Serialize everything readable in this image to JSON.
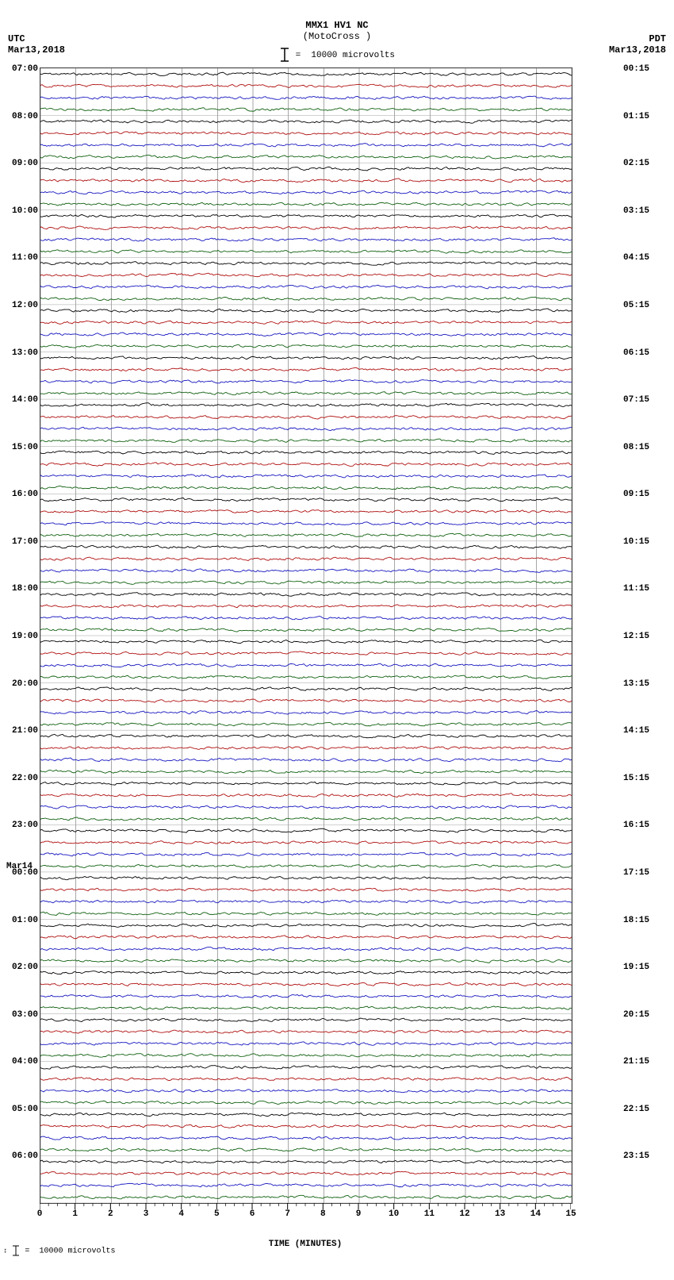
{
  "title_line1": "MMX1 HV1 NC",
  "title_line2": "(MotoCross )",
  "scale_text": "10000 microvolts",
  "tz_left": "UTC",
  "tz_right": "PDT",
  "date_left": "Mar13,2018",
  "date_right": "Mar13,2018",
  "xaxis_label": "TIME (MINUTES)",
  "footer_scale": "10000 microvolts",
  "plot": {
    "bg": "#ffffff",
    "grid_color": "#808080",
    "grid_sub_color": "#a0a0a0",
    "border_color": "#404040",
    "x_minutes": 15,
    "x_major_ticks": [
      0,
      1,
      2,
      3,
      4,
      5,
      6,
      7,
      8,
      9,
      10,
      11,
      12,
      13,
      14,
      15
    ],
    "n_hours": 24,
    "lines_per_hour": 4,
    "line_colors": [
      "#000000",
      "#b01010",
      "#1818c0",
      "#106010"
    ],
    "trace_amplitude": 2.5,
    "trace_noise_seed": 7
  },
  "utc_hours": [
    "07:00",
    "08:00",
    "09:00",
    "10:00",
    "11:00",
    "12:00",
    "13:00",
    "14:00",
    "15:00",
    "16:00",
    "17:00",
    "18:00",
    "19:00",
    "20:00",
    "21:00",
    "22:00",
    "23:00",
    "00:00",
    "01:00",
    "02:00",
    "03:00",
    "04:00",
    "05:00",
    "06:00"
  ],
  "utc_date_break": {
    "index": 17,
    "label": "Mar14"
  },
  "pdt_hours": [
    "00:15",
    "01:15",
    "02:15",
    "03:15",
    "04:15",
    "05:15",
    "06:15",
    "07:15",
    "08:15",
    "09:15",
    "10:15",
    "11:15",
    "12:15",
    "13:15",
    "14:15",
    "15:15",
    "16:15",
    "17:15",
    "18:15",
    "19:15",
    "20:15",
    "21:15",
    "22:15",
    "23:15"
  ]
}
